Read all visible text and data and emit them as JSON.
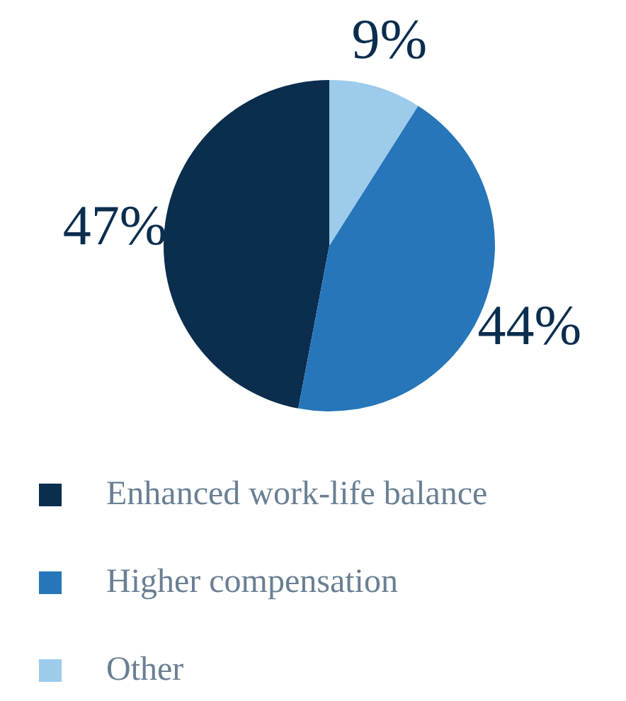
{
  "chart_data": {
    "type": "pie",
    "categories": [
      "Enhanced work-life balance",
      "Higher compensation",
      "Other"
    ],
    "values": [
      47,
      44,
      9
    ],
    "colors": [
      "#0b2d4e",
      "#2676b9",
      "#9ccbec"
    ],
    "value_labels": [
      "47%",
      "44%",
      "9%"
    ],
    "legend": "bottom"
  }
}
